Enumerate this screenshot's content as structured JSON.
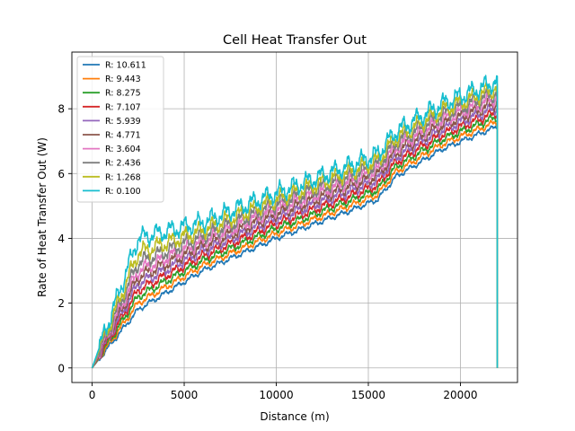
{
  "chart_data": {
    "type": "line",
    "title": "Cell Heat Transfer Out",
    "xlabel": "Distance (m)",
    "ylabel": "Rate of Heat Transfer Out (W)",
    "xlim": [
      -1100,
      23100
    ],
    "ylim": [
      -0.45,
      9.75
    ],
    "xticks": [
      0,
      5000,
      10000,
      15000,
      20000
    ],
    "yticks": [
      0,
      2,
      4,
      6,
      8
    ],
    "grid": true,
    "legend_position": "top-left",
    "series": [
      {
        "name": "R: 10.611",
        "color": "#1f77b4",
        "x": [
          0,
          2500,
          6000,
          10000,
          14000,
          15500,
          16500,
          19000,
          22000
        ],
        "y": [
          0,
          1.8,
          3.0,
          4.0,
          4.85,
          5.2,
          5.9,
          6.75,
          7.45
        ]
      },
      {
        "name": "R: 9.443",
        "color": "#ff7f0e",
        "x": [
          0,
          2500,
          6000,
          10000,
          14000,
          15500,
          16500,
          19000,
          22000
        ],
        "y": [
          0,
          2.0,
          3.15,
          4.15,
          5.0,
          5.35,
          6.05,
          6.9,
          7.6
        ]
      },
      {
        "name": "R: 8.275",
        "color": "#2ca02c",
        "x": [
          0,
          2500,
          6000,
          10000,
          14000,
          15500,
          16500,
          19000,
          22000
        ],
        "y": [
          0,
          2.2,
          3.3,
          4.3,
          5.15,
          5.5,
          6.2,
          7.05,
          7.75
        ]
      },
      {
        "name": "R: 7.107",
        "color": "#d62728",
        "x": [
          0,
          2500,
          6000,
          10000,
          14000,
          15500,
          16500,
          19000,
          22000
        ],
        "y": [
          0,
          2.4,
          3.45,
          4.45,
          5.3,
          5.65,
          6.35,
          7.2,
          7.9
        ]
      },
      {
        "name": "R: 5.939",
        "color": "#9467bd",
        "x": [
          0,
          2500,
          6000,
          10000,
          14000,
          15500,
          16500,
          19000,
          22000
        ],
        "y": [
          0,
          2.6,
          3.6,
          4.6,
          5.45,
          5.8,
          6.5,
          7.35,
          8.05
        ]
      },
      {
        "name": "R: 4.771",
        "color": "#8c564b",
        "x": [
          0,
          2500,
          6000,
          10000,
          14000,
          15500,
          16500,
          19000,
          22000
        ],
        "y": [
          0,
          2.8,
          3.75,
          4.75,
          5.6,
          5.95,
          6.65,
          7.5,
          8.2
        ]
      },
      {
        "name": "R: 3.604",
        "color": "#e377c2",
        "x": [
          0,
          2500,
          6000,
          10000,
          14000,
          15500,
          16500,
          19000,
          22000
        ],
        "y": [
          0,
          3.0,
          3.9,
          4.9,
          5.75,
          6.1,
          6.8,
          7.65,
          8.35
        ]
      },
      {
        "name": "R: 2.436",
        "color": "#7f7f7f",
        "x": [
          0,
          2500,
          6000,
          10000,
          14000,
          15500,
          16500,
          19000,
          22000
        ],
        "y": [
          0,
          3.25,
          4.05,
          5.05,
          5.9,
          6.25,
          6.95,
          7.8,
          8.5
        ]
      },
      {
        "name": "R: 1.268",
        "color": "#bcbd22",
        "x": [
          0,
          2500,
          6000,
          10000,
          14000,
          15500,
          16500,
          19000,
          22000
        ],
        "y": [
          0,
          3.55,
          4.25,
          5.2,
          6.05,
          6.4,
          7.1,
          7.95,
          8.65
        ]
      },
      {
        "name": "R: 0.100",
        "color": "#17becf",
        "x": [
          0,
          2500,
          6000,
          10000,
          14000,
          15500,
          16500,
          19000,
          22000
        ],
        "y": [
          0,
          4.0,
          4.5,
          5.4,
          6.25,
          6.6,
          7.3,
          8.15,
          8.85
        ]
      }
    ],
    "drop_x": 22000
  }
}
